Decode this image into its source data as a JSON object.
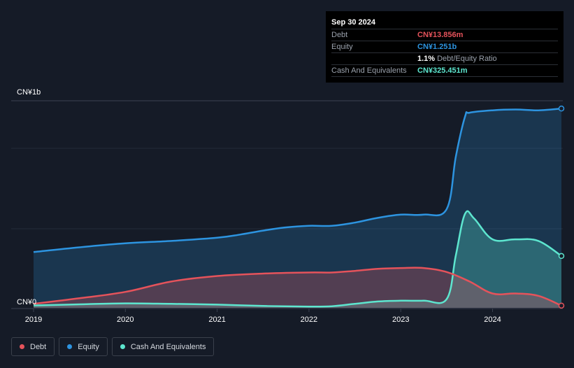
{
  "tooltip": {
    "date": "Sep 30 2024",
    "rows": [
      {
        "label": "Debt",
        "value": "CN¥13.856m",
        "color": "#e5535b"
      },
      {
        "label": "Equity",
        "value": "CN¥1.251b",
        "color": "#2d94e0"
      },
      {
        "label": "",
        "value": "1.1%",
        "suffix": "Debt/Equity Ratio",
        "color": "#ffffff"
      },
      {
        "label": "Cash And Equivalents",
        "value": "CN¥325.451m",
        "color": "#5de6cf"
      }
    ]
  },
  "legend": [
    {
      "label": "Debt",
      "color": "#e5535b"
    },
    {
      "label": "Equity",
      "color": "#2d94e0"
    },
    {
      "label": "Cash And Equivalents",
      "color": "#5de6cf"
    }
  ],
  "chart_data": {
    "type": "area",
    "y_top_label": "CN¥1b",
    "y_bottom_label": "CN¥0",
    "ylim": [
      0,
      1.3
    ],
    "xlim": [
      2019.0,
      2024.75
    ],
    "x_ticks": [
      "2019",
      "2020",
      "2021",
      "2022",
      "2023",
      "2024"
    ],
    "series": [
      {
        "name": "Equity",
        "color": "#2d94e0",
        "x": [
          2019.0,
          2019.5,
          2020.0,
          2020.5,
          2021.0,
          2021.25,
          2021.5,
          2021.75,
          2022.0,
          2022.25,
          2022.5,
          2022.75,
          2023.0,
          2023.25,
          2023.5,
          2023.6,
          2023.7,
          2023.75,
          2024.0,
          2024.25,
          2024.5,
          2024.75
        ],
        "y": [
          0.35,
          0.38,
          0.405,
          0.42,
          0.44,
          0.46,
          0.485,
          0.505,
          0.515,
          0.515,
          0.535,
          0.565,
          0.585,
          0.585,
          0.62,
          0.95,
          1.2,
          1.225,
          1.24,
          1.245,
          1.24,
          1.251
        ]
      },
      {
        "name": "Cash And Equivalents",
        "color": "#5de6cf",
        "x": [
          2019.0,
          2019.5,
          2020.0,
          2020.5,
          2021.0,
          2021.5,
          2022.0,
          2022.25,
          2022.5,
          2022.75,
          2023.0,
          2023.25,
          2023.5,
          2023.6,
          2023.7,
          2023.8,
          2024.0,
          2024.25,
          2024.5,
          2024.75
        ],
        "y": [
          0.015,
          0.022,
          0.028,
          0.025,
          0.02,
          0.012,
          0.008,
          0.01,
          0.025,
          0.04,
          0.045,
          0.045,
          0.055,
          0.33,
          0.59,
          0.56,
          0.43,
          0.43,
          0.42,
          0.325451
        ]
      },
      {
        "name": "Debt",
        "color": "#e5535b",
        "x": [
          2019.0,
          2019.5,
          2020.0,
          2020.5,
          2021.0,
          2021.5,
          2022.0,
          2022.25,
          2022.5,
          2022.75,
          2023.0,
          2023.25,
          2023.5,
          2023.75,
          2024.0,
          2024.25,
          2024.5,
          2024.75
        ],
        "y": [
          0.025,
          0.06,
          0.1,
          0.165,
          0.2,
          0.215,
          0.222,
          0.222,
          0.232,
          0.245,
          0.25,
          0.25,
          0.225,
          0.165,
          0.09,
          0.09,
          0.075,
          0.013856
        ]
      }
    ]
  }
}
